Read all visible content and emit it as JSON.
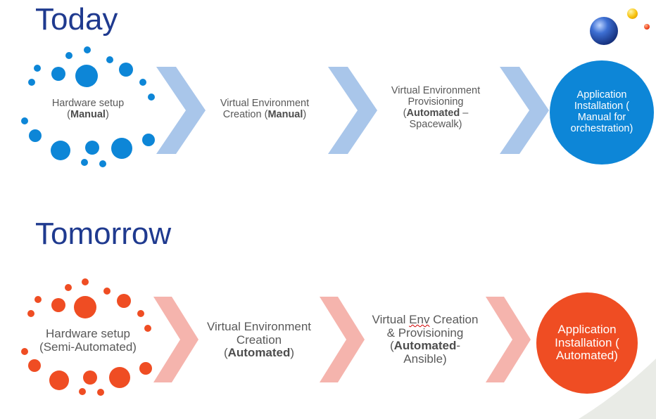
{
  "today": {
    "title": "Today",
    "accent": "#0d86d7",
    "chevron_color": "#a9c6ea",
    "steps": [
      {
        "line1": "Hardware setup",
        "pre": "(",
        "bold": "Manual",
        "post": ")"
      },
      {
        "line1": "Virtual Environment",
        "line2": "Creation",
        "pre": "(",
        "bold": "Manual",
        "post": ")"
      },
      {
        "line1": "Virtual Environment",
        "line2": "Provisioning",
        "pre": "(",
        "bold": "Automated",
        "post": " –",
        "line4": "Spacewalk)"
      }
    ],
    "final": {
      "lines": [
        "Application",
        "Installation (",
        "Manual for",
        "orchestration)"
      ]
    }
  },
  "tomorrow": {
    "title": "Tomorrow",
    "accent": "#ef4d23",
    "chevron_color": "#f5b4ad",
    "steps": [
      {
        "line1": "Hardware setup",
        "line2": "(Semi-Automated)"
      },
      {
        "line1": "Virtual Environment",
        "line2": "Creation",
        "pre": "(",
        "bold": "Automated",
        "post": ")"
      },
      {
        "line1a": "Virtual ",
        "line1b": "Env",
        "line1c": " Creation",
        "line2": "& Provisioning",
        "pre": "(",
        "bold": "Automated",
        "post": "-",
        "line4": "Ansible)"
      }
    ],
    "final": {
      "lines": [
        "Application",
        "Installation (",
        "Automated)"
      ]
    }
  },
  "colors": {
    "heading": "#1f3a8f",
    "step_text": "#595959",
    "swoosh": "#e9ebe6"
  },
  "icons": [
    "hardware-dots-icon",
    "chevron-arrow-icon",
    "decorative-spheres-icon"
  ]
}
